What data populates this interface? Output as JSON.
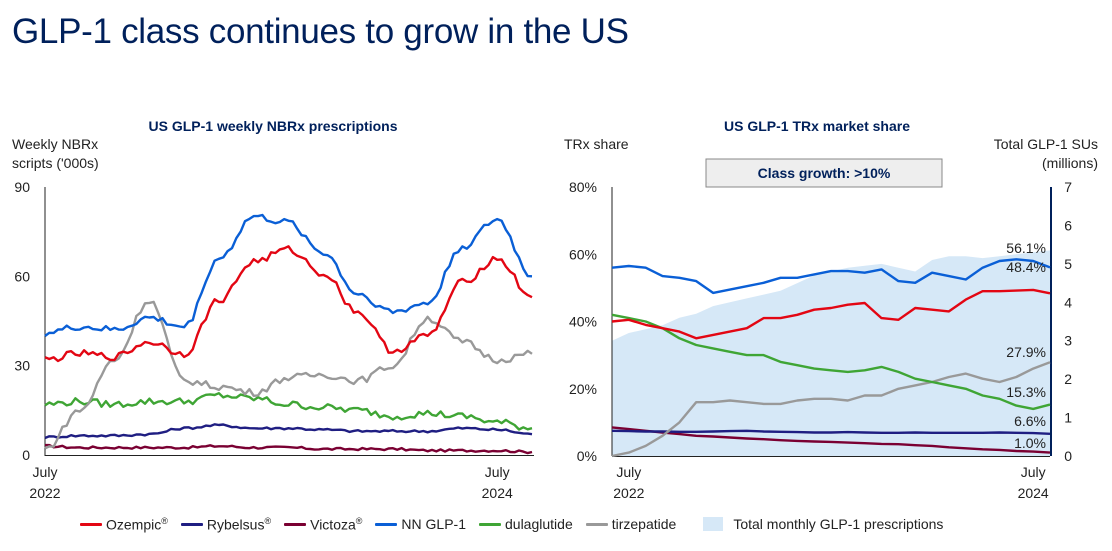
{
  "page": {
    "title": "GLP-1 class continues to grow in the US"
  },
  "colors": {
    "ozempic": "#e30613",
    "rybelsus": "#1f1e82",
    "victoza": "#7a0032",
    "nn_glp1": "#0a5fd6",
    "dulaglutide": "#3fa535",
    "tirzepatide": "#999999",
    "total_area": "#d6e8f7"
  },
  "legend": [
    {
      "key": "ozempic",
      "label": "Ozempic",
      "sup": "®"
    },
    {
      "key": "rybelsus",
      "label": "Rybelsus",
      "sup": "®"
    },
    {
      "key": "victoza",
      "label": "Victoza",
      "sup": "®"
    },
    {
      "key": "nn_glp1",
      "label": "NN GLP-1",
      "sup": ""
    },
    {
      "key": "dulaglutide",
      "label": "dulaglutide",
      "sup": ""
    },
    {
      "key": "tirzepatide",
      "label": "tirzepatide",
      "sup": ""
    }
  ],
  "legend_area_label": "Total monthly GLP-1 prescriptions",
  "chart_data": [
    {
      "type": "line",
      "title": "US GLP-1 weekly NBRx prescriptions",
      "ylabel": "Weekly NBRx scripts ('000s)",
      "ylabel_lines": [
        "Weekly NBRx",
        "scripts ('000s)"
      ],
      "ylim": [
        0,
        90
      ],
      "yticks": [
        0,
        30,
        60,
        90
      ],
      "x_range": [
        "Jul 2022",
        "Aug 2024"
      ],
      "xtick_labels": [
        {
          "line1": "July",
          "line2": "2022",
          "x": 0
        },
        {
          "line1": "July",
          "line2": "2024",
          "x": 104
        }
      ],
      "x": [
        0,
        8,
        16,
        24,
        32,
        40,
        48,
        56,
        64,
        72,
        80,
        88,
        96,
        104,
        112
      ],
      "series": [
        {
          "key": "ozempic",
          "name": "Ozempic",
          "values": [
            32,
            34,
            33,
            38,
            34,
            52,
            65,
            69,
            61,
            48,
            35,
            40,
            58,
            66,
            53
          ]
        },
        {
          "key": "rybelsus",
          "name": "Rybelsus",
          "values": [
            6,
            6.5,
            6.5,
            7,
            9,
            10,
            9,
            9,
            8.5,
            8,
            8,
            8,
            9,
            8.5,
            7
          ]
        },
        {
          "key": "victoza",
          "name": "Victoza",
          "values": [
            3,
            2.5,
            2.5,
            2.5,
            2.5,
            3,
            2.5,
            2.5,
            2,
            2,
            2,
            1.5,
            1.5,
            1.5,
            1
          ]
        },
        {
          "key": "nn_glp1",
          "name": "NN GLP-1",
          "values": [
            41,
            43,
            42,
            46,
            43,
            66,
            80,
            78,
            68,
            54,
            48,
            51,
            70,
            79,
            60
          ]
        },
        {
          "key": "dulaglutide",
          "name": "dulaglutide",
          "values": [
            17,
            18,
            17,
            18,
            18,
            20,
            19,
            17,
            16,
            15,
            13,
            14,
            13,
            11,
            9
          ]
        },
        {
          "key": "tirzepatide",
          "name": "tirzepatide",
          "values": [
            2,
            15,
            32,
            52,
            25,
            23,
            21,
            26,
            27,
            25,
            30,
            46,
            38,
            32,
            34
          ]
        }
      ]
    },
    {
      "type": "line",
      "title": "US GLP-1 TRx market share",
      "ylabel": "TRx share",
      "y2label": "Total GLP-1 SUs (millions)",
      "y2label_lines": [
        "Total GLP-1 SUs",
        "(millions)"
      ],
      "ylim": [
        0,
        80
      ],
      "yticks": [
        "0%",
        "20%",
        "40%",
        "60%",
        "80%"
      ],
      "y2lim": [
        0,
        7
      ],
      "y2ticks": [
        0,
        1,
        2,
        3,
        4,
        5,
        6,
        7
      ],
      "x_range": [
        "Jun 2022",
        "Aug 2024"
      ],
      "xtick_labels": [
        {
          "line1": "July",
          "line2": "2022",
          "x": 1
        },
        {
          "line1": "July",
          "line2": "2024",
          "x": 25
        }
      ],
      "annotation_box": "Class growth: >10%",
      "x": [
        0,
        1,
        2,
        3,
        4,
        5,
        6,
        7,
        8,
        9,
        10,
        11,
        12,
        13,
        14,
        15,
        16,
        17,
        18,
        19,
        20,
        21,
        22,
        23,
        24,
        25,
        26
      ],
      "area": {
        "key": "total_area",
        "name": "Total monthly GLP-1 prescriptions",
        "values": [
          3.0,
          3.2,
          3.3,
          3.4,
          3.6,
          3.7,
          3.9,
          4.0,
          4.1,
          4.2,
          4.3,
          4.5,
          4.7,
          4.8,
          4.9,
          4.95,
          5.0,
          4.9,
          4.8,
          5.1,
          5.2,
          5.2,
          5.15,
          5.2,
          5.25,
          5.3,
          5.35
        ]
      },
      "series": [
        {
          "key": "ozempic",
          "name": "Ozempic",
          "end_label": "48.4%",
          "values": [
            40,
            40.5,
            39,
            38,
            37,
            35,
            36,
            37,
            38,
            41,
            41,
            42,
            43.5,
            44,
            45,
            45.5,
            41,
            40.5,
            44,
            43.5,
            43,
            46.5,
            49,
            49,
            49.2,
            49.4,
            48.4
          ]
        },
        {
          "key": "rybelsus",
          "name": "Rybelsus",
          "end_label": "6.6%",
          "values": [
            7.5,
            7.4,
            7.3,
            7.3,
            7.2,
            7.2,
            7.3,
            7.4,
            7.5,
            7.3,
            7.2,
            7.1,
            7.0,
            7.0,
            7.1,
            7.0,
            6.9,
            6.9,
            7.0,
            6.9,
            6.9,
            6.9,
            6.9,
            7.0,
            6.9,
            6.8,
            6.6
          ]
        },
        {
          "key": "victoza",
          "name": "Victoza",
          "end_label": "1.0%",
          "values": [
            8.5,
            8,
            7.5,
            7,
            6.5,
            6,
            5.8,
            5.5,
            5.2,
            5,
            4.7,
            4.5,
            4.3,
            4.2,
            4,
            3.8,
            3.6,
            3.5,
            3.2,
            3,
            2.6,
            2.3,
            2,
            1.8,
            1.5,
            1.3,
            1.0
          ]
        },
        {
          "key": "nn_glp1",
          "name": "NN GLP-1",
          "end_label": "56.1%",
          "values": [
            56,
            56.5,
            56,
            53.5,
            53,
            52,
            48.5,
            49.5,
            50.5,
            51.5,
            53,
            53,
            54,
            55,
            55,
            54.5,
            55.5,
            52,
            51.5,
            54.5,
            53.5,
            52.5,
            56,
            58,
            58.5,
            58,
            56.1
          ]
        },
        {
          "key": "dulaglutide",
          "name": "dulaglutide",
          "end_label": "15.3%",
          "values": [
            42,
            41,
            40,
            38,
            35,
            33,
            32,
            31,
            30,
            30,
            28,
            27,
            26,
            25.5,
            25,
            25.5,
            26.5,
            25,
            23,
            22,
            21,
            20,
            18,
            17,
            15,
            14,
            15.3
          ]
        },
        {
          "key": "tirzepatide",
          "name": "tirzepatide",
          "end_label": "27.9%",
          "values": [
            0,
            1,
            3,
            6,
            10,
            16,
            16,
            16.5,
            16,
            15.5,
            15.5,
            16.5,
            17,
            17,
            16.5,
            18,
            18,
            20,
            21,
            22,
            23.5,
            24.5,
            23,
            22,
            23.5,
            26,
            27.9
          ]
        }
      ]
    }
  ]
}
